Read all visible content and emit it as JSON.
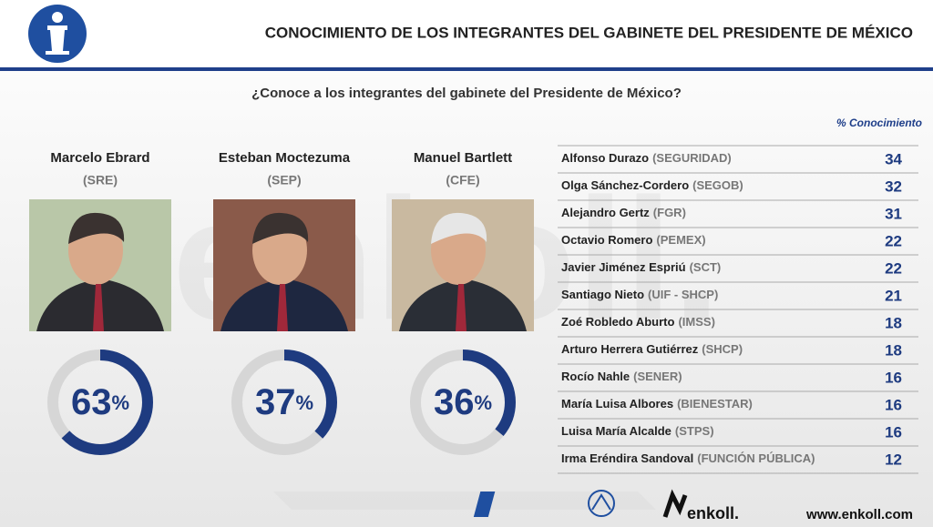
{
  "header": {
    "title": "CONOCIMIENTO DE LOS INTEGRANTES DEL GABINETE DEL PRESIDENTE DE MÉXICO"
  },
  "question": "¿Conoce a los integrantes del gabinete del Presidente de México?",
  "people": [
    {
      "name": "Marcelo Ebrard",
      "agency": "(SRE)",
      "percent": 63
    },
    {
      "name": "Esteban Moctezuma",
      "agency": "(SEP)",
      "percent": 37
    },
    {
      "name": "Manuel Bartlett",
      "agency": "(CFE)",
      "percent": 36
    }
  ],
  "percent_sign": "%",
  "table": {
    "header": "% Conocimiento",
    "rows": [
      [
        "Alfonso Durazo",
        "(SEGURIDAD)",
        34
      ],
      [
        "Olga Sánchez-Cordero",
        "(SEGOB)",
        32
      ],
      [
        "Alejandro Gertz",
        "(FGR)",
        31
      ],
      [
        "Octavio Romero",
        "(PEMEX)",
        22
      ],
      [
        "Javier Jiménez Espriú",
        "(SCT)",
        22
      ],
      [
        "Santiago Nieto",
        "(UIF - SHCP)",
        21
      ],
      [
        "Zoé Robledo Aburto",
        "(IMSS)",
        18
      ],
      [
        "Arturo Herrera Gutiérrez",
        "(SHCP)",
        18
      ],
      [
        "Rocío Nahle",
        "(SENER)",
        16
      ],
      [
        "María Luisa Albores",
        "(BIENESTAR)",
        16
      ],
      [
        "Luisa María Alcalde",
        "(STPS)",
        16
      ],
      [
        "Irma Eréndira Sandoval",
        "(FUNCIÓN PÚBLICA)",
        12
      ]
    ]
  },
  "footer": {
    "brand": "enkoll.",
    "website": "www.enkoll.com"
  },
  "watermark": "enkoll."
}
